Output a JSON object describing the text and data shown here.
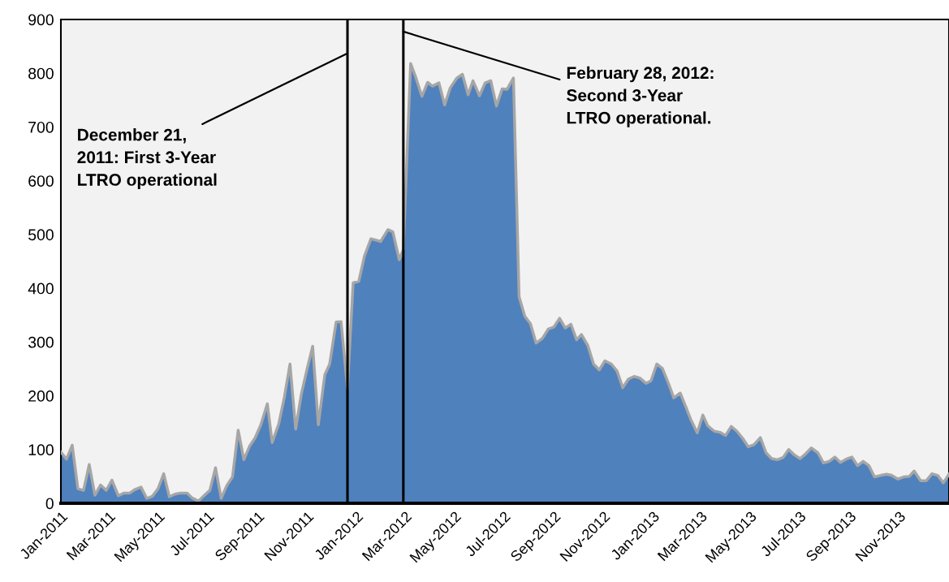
{
  "chart_data": {
    "type": "area",
    "x": [
      "2011-01-01",
      "2011-01-08",
      "2011-01-15",
      "2011-01-22",
      "2011-01-29",
      "2011-02-05",
      "2011-02-12",
      "2011-02-19",
      "2011-02-26",
      "2011-03-05",
      "2011-03-13",
      "2011-03-20",
      "2011-03-27",
      "2011-04-03",
      "2011-04-10",
      "2011-04-17",
      "2011-04-24",
      "2011-05-01",
      "2011-05-08",
      "2011-05-15",
      "2011-05-22",
      "2011-05-29",
      "2011-06-06",
      "2011-06-12",
      "2011-06-20",
      "2011-06-26",
      "2011-07-04",
      "2011-07-11",
      "2011-07-18",
      "2011-07-25",
      "2011-08-01",
      "2011-08-08",
      "2011-08-15",
      "2011-08-22",
      "2011-08-29",
      "2011-09-05",
      "2011-09-13",
      "2011-09-19",
      "2011-09-27",
      "2011-10-04",
      "2011-10-11",
      "2011-10-18",
      "2011-10-25",
      "2011-11-01",
      "2011-11-08",
      "2011-11-15",
      "2011-11-23",
      "2011-11-29",
      "2011-12-07",
      "2011-12-13",
      "2011-12-21",
      "2011-12-28",
      "2012-01-04",
      "2012-01-11",
      "2012-01-19",
      "2012-01-31",
      "2012-02-09",
      "2012-02-15",
      "2012-02-23",
      "2012-02-28",
      "2012-03-08",
      "2012-03-14",
      "2012-03-22",
      "2012-03-29",
      "2012-04-04",
      "2012-04-12",
      "2012-04-19",
      "2012-04-26",
      "2012-05-04",
      "2012-05-11",
      "2012-05-18",
      "2012-05-24",
      "2012-06-01",
      "2012-06-08",
      "2012-06-15",
      "2012-06-22",
      "2012-06-29",
      "2012-07-05",
      "2012-07-13",
      "2012-07-20",
      "2012-07-27",
      "2012-08-03",
      "2012-08-10",
      "2012-08-18",
      "2012-08-25",
      "2012-09-01",
      "2012-09-08",
      "2012-09-15",
      "2012-09-22",
      "2012-09-29",
      "2012-10-05",
      "2012-10-13",
      "2012-10-20",
      "2012-10-27",
      "2012-11-03",
      "2012-11-11",
      "2012-11-18",
      "2012-11-25",
      "2012-12-02",
      "2012-12-09",
      "2012-12-16",
      "2012-12-24",
      "2012-12-30",
      "2013-01-06",
      "2013-01-13",
      "2013-01-21",
      "2013-01-27",
      "2013-02-04",
      "2013-02-11",
      "2013-02-17",
      "2013-02-25",
      "2013-03-04",
      "2013-03-10",
      "2013-03-18",
      "2013-03-25",
      "2013-04-01",
      "2013-04-08",
      "2013-04-15",
      "2013-04-23",
      "2013-04-29",
      "2013-05-06",
      "2013-05-14",
      "2013-05-21",
      "2013-05-28",
      "2013-06-04",
      "2013-06-11",
      "2013-06-18",
      "2013-06-25",
      "2013-07-02",
      "2013-07-09",
      "2013-07-16",
      "2013-07-24",
      "2013-07-31",
      "2013-08-07",
      "2013-08-14",
      "2013-08-21",
      "2013-08-28",
      "2013-09-04",
      "2013-09-11",
      "2013-09-18",
      "2013-09-25",
      "2013-10-02",
      "2013-10-10",
      "2013-10-17",
      "2013-10-23",
      "2013-10-31",
      "2013-11-07",
      "2013-11-14",
      "2013-11-20",
      "2013-11-28",
      "2013-12-05",
      "2013-12-12",
      "2013-12-19",
      "2013-12-26",
      "2014-01-02"
    ],
    "series": [
      {
        "color": "#4f81bd",
        "values": [
          95,
          82,
          108,
          27,
          24,
          72,
          15,
          34,
          24,
          43,
          14,
          19,
          19,
          26,
          30,
          9,
          13,
          27,
          55,
          12,
          17,
          19,
          19,
          10,
          4,
          13,
          24,
          66,
          9,
          33,
          49,
          136,
          81,
          106,
          122,
          146,
          185,
          113,
          147,
          197,
          259,
          138,
          203,
          249,
          292,
          146,
          239,
          259,
          337,
          338,
          214,
          410,
          413,
          460,
          492,
          487,
          509,
          505,
          453,
          472,
          818,
          794,
          757,
          783,
          776,
          782,
          741,
          773,
          791,
          798,
          760,
          786,
          758,
          782,
          786,
          739,
          771,
          770,
          791,
          384,
          348,
          334,
          298,
          307,
          324,
          328,
          344,
          326,
          333,
          304,
          314,
          293,
          259,
          248,
          265,
          259,
          246,
          215,
          231,
          236,
          233,
          223,
          228,
          259,
          251,
          221,
          196,
          205,
          179,
          156,
          131,
          164,
          144,
          134,
          132,
          126,
          143,
          134,
          119,
          105,
          109,
          122,
          94,
          83,
          81,
          85,
          100,
          90,
          83,
          92,
          103,
          94,
          75,
          78,
          86,
          76,
          82,
          86,
          70,
          78,
          70,
          49,
          52,
          54,
          52,
          45,
          49,
          50,
          60,
          42,
          42,
          55,
          52,
          38,
          54
        ]
      }
    ],
    "xlim": [
      "2011-01-01",
      "2014-01-02"
    ],
    "xticks": [
      {
        "value": "2011-01-01",
        "label": "Jan-2011"
      },
      {
        "value": "2011-03-01",
        "label": "Mar-2011"
      },
      {
        "value": "2011-05-01",
        "label": "May-2011"
      },
      {
        "value": "2011-07-01",
        "label": "Jul-2011"
      },
      {
        "value": "2011-09-01",
        "label": "Sep-2011"
      },
      {
        "value": "2011-11-01",
        "label": "Nov-2011"
      },
      {
        "value": "2012-01-01",
        "label": "Jan-2012"
      },
      {
        "value": "2012-03-01",
        "label": "Mar-2012"
      },
      {
        "value": "2012-05-01",
        "label": "May-2012"
      },
      {
        "value": "2012-07-01",
        "label": "Jul-2012"
      },
      {
        "value": "2012-09-01",
        "label": "Sep-2012"
      },
      {
        "value": "2012-11-01",
        "label": "Nov-2012"
      },
      {
        "value": "2013-01-01",
        "label": "Jan-2013"
      },
      {
        "value": "2013-03-01",
        "label": "Mar-2013"
      },
      {
        "value": "2013-05-01",
        "label": "May-2013"
      },
      {
        "value": "2013-07-01",
        "label": "Jul-2013"
      },
      {
        "value": "2013-09-01",
        "label": "Sep-2013"
      },
      {
        "value": "2013-11-01",
        "label": "Nov-2013"
      }
    ],
    "ylim": [
      0,
      900
    ],
    "yticks": [
      0,
      100,
      200,
      300,
      400,
      500,
      600,
      700,
      800,
      900
    ],
    "ref_lines": [
      {
        "axis": "x",
        "value": "2011-12-21",
        "label": "December 21,\n2011: First 3-Year\nLTRO operational",
        "color": "#000000"
      },
      {
        "axis": "x",
        "value": "2012-02-28",
        "label": "February 28, 2012:\nSecond 3-Year\nLTRO operational.",
        "color": "#000000"
      }
    ],
    "grid": false
  }
}
